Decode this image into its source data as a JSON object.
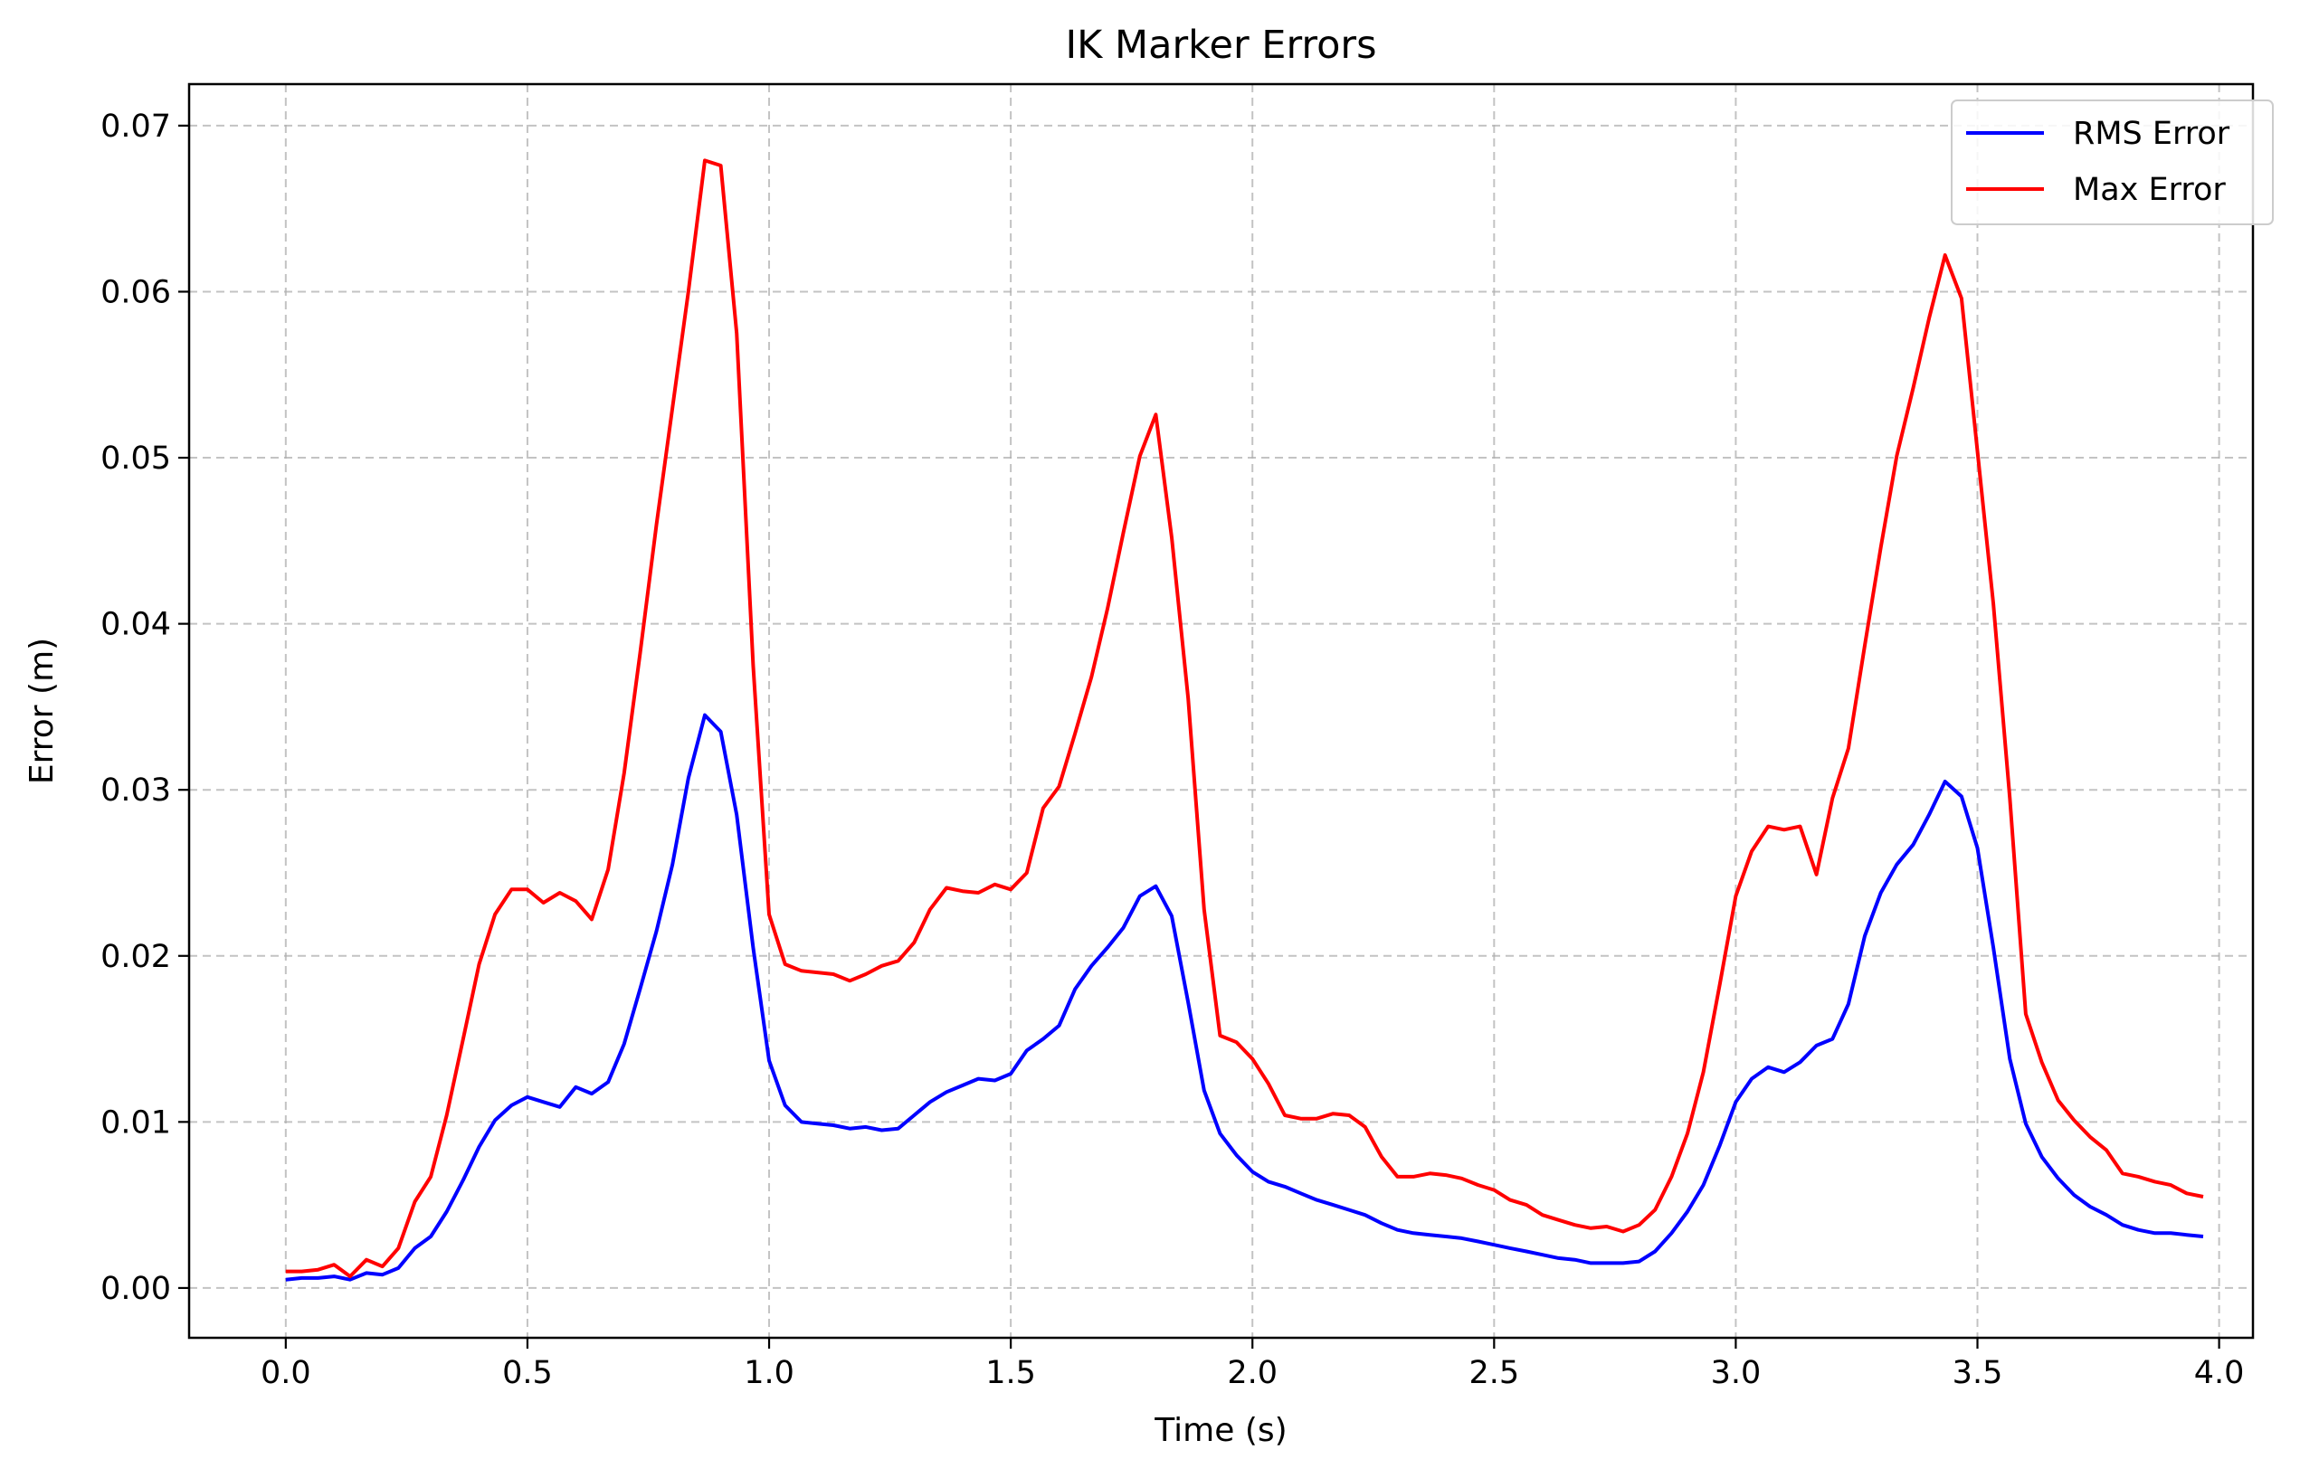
{
  "chart_data": {
    "type": "line",
    "title": "IK Marker Errors",
    "xlabel": "Time (s)",
    "ylabel": "Error (m)",
    "xlim": [
      -0.2,
      4.07
    ],
    "ylim": [
      -0.003,
      0.0725
    ],
    "xticks": [
      0.0,
      0.5,
      1.0,
      1.5,
      2.0,
      2.5,
      3.0,
      3.5,
      4.0
    ],
    "xtick_labels": [
      "0.0",
      "0.5",
      "1.0",
      "1.5",
      "2.0",
      "2.5",
      "3.0",
      "3.5",
      "4.0"
    ],
    "yticks": [
      0.0,
      0.01,
      0.02,
      0.03,
      0.04,
      0.05,
      0.06,
      0.07
    ],
    "ytick_labels": [
      "0.00",
      "0.01",
      "0.02",
      "0.03",
      "0.04",
      "0.05",
      "0.06",
      "0.07"
    ],
    "grid": true,
    "legend_position": "top-right",
    "series": [
      {
        "name": "RMS Error",
        "color": "#0000ff",
        "x": [
          0.0,
          0.033,
          0.067,
          0.1,
          0.133,
          0.167,
          0.2,
          0.233,
          0.267,
          0.3,
          0.333,
          0.367,
          0.4,
          0.433,
          0.467,
          0.5,
          0.533,
          0.567,
          0.6,
          0.633,
          0.667,
          0.7,
          0.733,
          0.767,
          0.8,
          0.833,
          0.867,
          0.9,
          0.933,
          0.967,
          1.0,
          1.033,
          1.067,
          1.1,
          1.133,
          1.167,
          1.2,
          1.233,
          1.267,
          1.3,
          1.333,
          1.367,
          1.4,
          1.433,
          1.467,
          1.5,
          1.533,
          1.567,
          1.6,
          1.633,
          1.667,
          1.7,
          1.733,
          1.767,
          1.8,
          1.833,
          1.867,
          1.9,
          1.933,
          1.967,
          2.0,
          2.033,
          2.067,
          2.1,
          2.133,
          2.167,
          2.2,
          2.233,
          2.267,
          2.3,
          2.333,
          2.367,
          2.4,
          2.433,
          2.467,
          2.5,
          2.533,
          2.567,
          2.6,
          2.633,
          2.667,
          2.7,
          2.733,
          2.767,
          2.8,
          2.833,
          2.867,
          2.9,
          2.933,
          2.967,
          3.0,
          3.033,
          3.067,
          3.1,
          3.133,
          3.167,
          3.2,
          3.233,
          3.267,
          3.3,
          3.333,
          3.367,
          3.4,
          3.433,
          3.467,
          3.5,
          3.533,
          3.567,
          3.6,
          3.633,
          3.667,
          3.7,
          3.733,
          3.767,
          3.8,
          3.833,
          3.867,
          3.9,
          3.933,
          3.967
        ],
        "y": [
          0.0005,
          0.0006,
          0.0006,
          0.0007,
          0.0005,
          0.0009,
          0.0008,
          0.0012,
          0.0024,
          0.0031,
          0.0046,
          0.0065,
          0.0085,
          0.0101,
          0.011,
          0.0115,
          0.0112,
          0.0109,
          0.0121,
          0.0117,
          0.0124,
          0.0147,
          0.018,
          0.0215,
          0.0255,
          0.0307,
          0.0345,
          0.0335,
          0.0285,
          0.0205,
          0.0137,
          0.011,
          0.01,
          0.0099,
          0.0098,
          0.0096,
          0.0097,
          0.0095,
          0.0096,
          0.0104,
          0.0112,
          0.0118,
          0.0122,
          0.0126,
          0.0125,
          0.0129,
          0.0143,
          0.015,
          0.0158,
          0.018,
          0.0194,
          0.0205,
          0.0217,
          0.0236,
          0.0242,
          0.0224,
          0.0172,
          0.0119,
          0.0093,
          0.008,
          0.007,
          0.0064,
          0.0061,
          0.0057,
          0.0053,
          0.005,
          0.0047,
          0.0044,
          0.0039,
          0.0035,
          0.0033,
          0.0032,
          0.0031,
          0.003,
          0.0028,
          0.0026,
          0.0024,
          0.0022,
          0.002,
          0.0018,
          0.0017,
          0.0015,
          0.0015,
          0.0015,
          0.0016,
          0.0022,
          0.0033,
          0.0046,
          0.0062,
          0.0086,
          0.0112,
          0.0126,
          0.0133,
          0.013,
          0.0136,
          0.0146,
          0.015,
          0.0171,
          0.0212,
          0.0238,
          0.0255,
          0.0267,
          0.0285,
          0.0305,
          0.0296,
          0.0265,
          0.0205,
          0.0138,
          0.0099,
          0.0079,
          0.0066,
          0.0056,
          0.0049,
          0.0044,
          0.0038,
          0.0035,
          0.0033,
          0.0033,
          0.0032,
          0.0031
        ]
      },
      {
        "name": "Max Error",
        "color": "#ff0000",
        "x": [
          0.0,
          0.033,
          0.067,
          0.1,
          0.133,
          0.167,
          0.2,
          0.233,
          0.267,
          0.3,
          0.333,
          0.367,
          0.4,
          0.433,
          0.467,
          0.5,
          0.533,
          0.567,
          0.6,
          0.633,
          0.667,
          0.7,
          0.733,
          0.767,
          0.8,
          0.833,
          0.867,
          0.9,
          0.933,
          0.967,
          1.0,
          1.033,
          1.067,
          1.1,
          1.133,
          1.167,
          1.2,
          1.233,
          1.267,
          1.3,
          1.333,
          1.367,
          1.4,
          1.433,
          1.467,
          1.5,
          1.533,
          1.567,
          1.6,
          1.633,
          1.667,
          1.7,
          1.733,
          1.767,
          1.8,
          1.833,
          1.867,
          1.9,
          1.933,
          1.967,
          2.0,
          2.033,
          2.067,
          2.1,
          2.133,
          2.167,
          2.2,
          2.233,
          2.267,
          2.3,
          2.333,
          2.367,
          2.4,
          2.433,
          2.467,
          2.5,
          2.533,
          2.567,
          2.6,
          2.633,
          2.667,
          2.7,
          2.733,
          2.767,
          2.8,
          2.833,
          2.867,
          2.9,
          2.933,
          2.967,
          3.0,
          3.033,
          3.067,
          3.1,
          3.133,
          3.167,
          3.2,
          3.233,
          3.267,
          3.3,
          3.333,
          3.367,
          3.4,
          3.433,
          3.467,
          3.5,
          3.533,
          3.567,
          3.6,
          3.633,
          3.667,
          3.7,
          3.733,
          3.767,
          3.8,
          3.833,
          3.867,
          3.9,
          3.933,
          3.967
        ],
        "y": [
          0.001,
          0.001,
          0.0011,
          0.0014,
          0.0007,
          0.0017,
          0.0013,
          0.0024,
          0.0052,
          0.0067,
          0.0104,
          0.015,
          0.0195,
          0.0225,
          0.024,
          0.024,
          0.0232,
          0.0238,
          0.0233,
          0.0222,
          0.0252,
          0.031,
          0.0382,
          0.046,
          0.053,
          0.06,
          0.0679,
          0.0676,
          0.0575,
          0.0375,
          0.0225,
          0.0195,
          0.0191,
          0.019,
          0.0189,
          0.0185,
          0.0189,
          0.0194,
          0.0197,
          0.0208,
          0.0228,
          0.0241,
          0.0239,
          0.0238,
          0.0243,
          0.024,
          0.025,
          0.0289,
          0.0302,
          0.0334,
          0.0368,
          0.0409,
          0.0455,
          0.0501,
          0.0526,
          0.0452,
          0.0355,
          0.0228,
          0.0152,
          0.0148,
          0.0138,
          0.0123,
          0.0104,
          0.0102,
          0.0102,
          0.0105,
          0.0104,
          0.0097,
          0.0079,
          0.0067,
          0.0067,
          0.0069,
          0.0068,
          0.0066,
          0.0062,
          0.0059,
          0.0053,
          0.005,
          0.0044,
          0.0041,
          0.0038,
          0.0036,
          0.0037,
          0.0034,
          0.0038,
          0.0047,
          0.0067,
          0.0093,
          0.013,
          0.0183,
          0.0236,
          0.0263,
          0.0278,
          0.0276,
          0.0278,
          0.0249,
          0.0295,
          0.0325,
          0.0387,
          0.0446,
          0.0501,
          0.0542,
          0.0584,
          0.0622,
          0.0596,
          0.0504,
          0.0412,
          0.0295,
          0.0165,
          0.0136,
          0.0113,
          0.0101,
          0.0091,
          0.0083,
          0.0069,
          0.0067,
          0.0064,
          0.0062,
          0.0057,
          0.0055
        ]
      }
    ]
  }
}
